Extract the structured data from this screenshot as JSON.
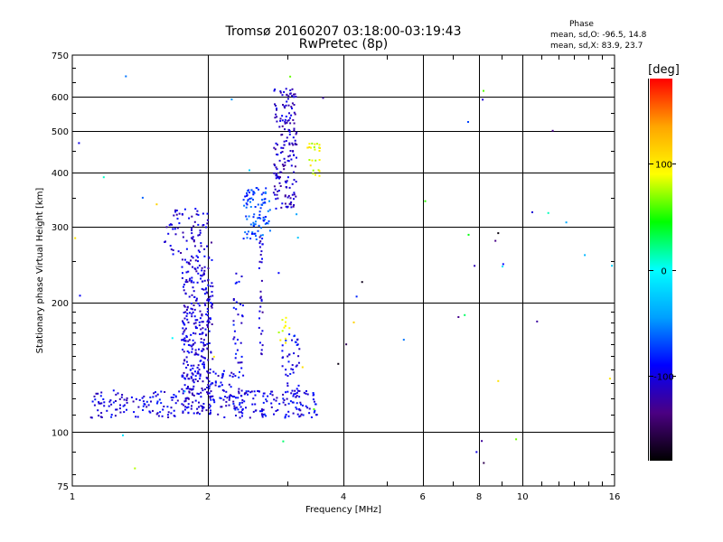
{
  "title": {
    "line1": "Tromsø 20160207 03:18:00-03:19:43",
    "line2": "RwPretec (8p)"
  },
  "phase_stats": {
    "title": "Phase",
    "o_line": "mean, sd,O: -96.5, 14.8",
    "x_line": "mean, sd,X: 83.9, 23.7"
  },
  "colorbar": {
    "label": "[deg]",
    "ticks": [
      "100",
      "0",
      "-100"
    ],
    "tick_values": [
      100,
      0,
      -100
    ],
    "range": [
      -180,
      180
    ],
    "colors": [
      "#000000",
      "#4b0082",
      "#0000ff",
      "#00a0ff",
      "#00ffff",
      "#00ff00",
      "#ffff00",
      "#ffa500",
      "#ff0000"
    ]
  },
  "chart_data": {
    "type": "scatter",
    "title": "Tromsø 20160207 03:18:00-03:19:43",
    "subtitle": "RwPretec (8p)",
    "xlabel": "Frequency [MHz]",
    "ylabel": "Stationary phase Virtual Height [km]",
    "x_scale": "log",
    "y_scale": "log",
    "xlim": [
      1,
      16
    ],
    "ylim": [
      75,
      750
    ],
    "x_ticks": [
      1,
      2,
      4,
      6,
      8,
      10,
      16
    ],
    "x_tick_labels": [
      "1",
      "2",
      "4",
      "6",
      "8",
      "10",
      "16"
    ],
    "y_ticks": [
      75,
      100,
      200,
      300,
      400,
      500,
      600,
      750
    ],
    "y_tick_labels": [
      "75",
      "100",
      "200",
      "300",
      "400",
      "500",
      "600",
      "750"
    ],
    "grid": true,
    "color_variable": "Phase [deg]",
    "clusters": [
      {
        "x_range": [
          1.75,
          2.05
        ],
        "y_range": [
          110,
          255
        ],
        "n": 360,
        "phase": -105
      },
      {
        "x_range": [
          1.6,
          2.0
        ],
        "y_range": [
          255,
          330
        ],
        "n": 70,
        "phase": -105
      },
      {
        "x_range": [
          1.1,
          1.75
        ],
        "y_range": [
          108,
          125
        ],
        "n": 110,
        "phase": -100
      },
      {
        "x_range": [
          2.0,
          2.3
        ],
        "y_range": [
          108,
          140
        ],
        "n": 60,
        "phase": -100
      },
      {
        "x_range": [
          2.28,
          2.4
        ],
        "y_range": [
          110,
          240
        ],
        "n": 50,
        "phase": -95
      },
      {
        "x_range": [
          2.4,
          2.75
        ],
        "y_range": [
          280,
          370
        ],
        "n": 95,
        "phase": -70
      },
      {
        "x_range": [
          2.8,
          3.15
        ],
        "y_range": [
          330,
          630
        ],
        "n": 180,
        "phase": -110
      },
      {
        "x_range": [
          2.3,
          3.5
        ],
        "y_range": [
          108,
          125
        ],
        "n": 130,
        "phase": -100
      },
      {
        "x_range": [
          2.9,
          3.2
        ],
        "y_range": [
          120,
          170
        ],
        "n": 40,
        "phase": -95
      },
      {
        "x_range": [
          2.6,
          2.65
        ],
        "y_range": [
          150,
          290
        ],
        "n": 30,
        "phase": -110
      },
      {
        "x_range": [
          3.3,
          3.55
        ],
        "y_range": [
          385,
          470
        ],
        "n": 25,
        "phase": 90
      },
      {
        "x_range": [
          2.85,
          3.05
        ],
        "y_range": [
          160,
          185
        ],
        "n": 12,
        "phase": 90
      },
      {
        "x_range": [
          1.0,
          16.0
        ],
        "y_range": [
          78,
          700
        ],
        "n": 55,
        "phase": -60
      }
    ]
  }
}
